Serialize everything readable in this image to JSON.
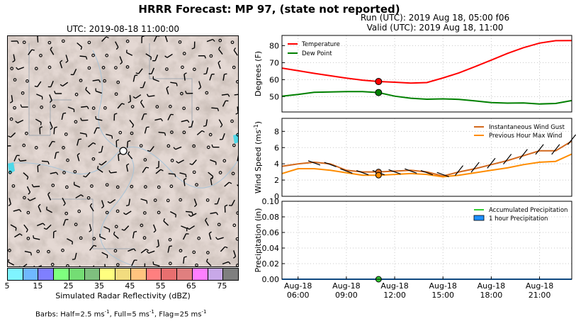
{
  "figure": {
    "title": "HRRR Forecast: MP 97, (state not reported)",
    "run_line": "Run (UTC): 2019 Aug 18, 05:00 f06",
    "valid_line": "Valid (UTC): 2019 Aug 18, 11:00"
  },
  "map": {
    "title": "UTC: 2019-08-18 11:00:00",
    "colorbar": {
      "label": "Simulated Radar Reflectivity (dBZ)",
      "ticks": [
        "5",
        "15",
        "25",
        "35",
        "45",
        "55",
        "65",
        "75"
      ],
      "colors": [
        "#7ff4ff",
        "#6fb8ff",
        "#7f7fff",
        "#7fff7f",
        "#74dd74",
        "#7fc07f",
        "#ffff7f",
        "#f2dc7f",
        "#ffc47f",
        "#ff7f7f",
        "#e86f6f",
        "#e07f7f",
        "#ff7fff",
        "#c8a8e8",
        "#7f7f7f"
      ]
    },
    "barbs_note": "Barbs: Half=2.5 ms",
    "barbs_note_unit": "-1",
    "barbs_note_rest": ", Full=5 ms",
    "barbs_note_rest2": ", Flag=25 ms"
  },
  "chart_data": [
    {
      "type": "line",
      "panel": "temperature",
      "ylabel": "Degrees (F)",
      "ylim": [
        41,
        86
      ],
      "yticks": [
        "50",
        "60",
        "70",
        "80"
      ],
      "legend": [
        "Temperature",
        "Dew Point"
      ],
      "legend_position": "top-left",
      "x": [
        "05:00",
        "06:00",
        "07:00",
        "08:00",
        "09:00",
        "10:00",
        "11:00",
        "12:00",
        "13:00",
        "14:00",
        "15:00",
        "16:00",
        "17:00",
        "18:00",
        "19:00",
        "20:00",
        "21:00",
        "22:00",
        "23:00"
      ],
      "series": [
        {
          "name": "Temperature",
          "color": "#ff0000",
          "values": [
            66.8,
            65.3,
            63.7,
            62.3,
            60.9,
            59.7,
            58.9,
            58.5,
            58.0,
            58.3,
            61.0,
            64.0,
            67.7,
            71.5,
            75.4,
            78.8,
            81.5,
            82.9,
            83.0
          ]
        },
        {
          "name": "Dew Point",
          "color": "#008000",
          "values": [
            50.3,
            51.3,
            52.6,
            52.8,
            53.0,
            53.0,
            52.4,
            50.3,
            49.1,
            48.5,
            48.7,
            48.4,
            47.5,
            46.5,
            46.2,
            46.3,
            45.7,
            46.0,
            47.7
          ]
        }
      ],
      "marker_index": 6
    },
    {
      "type": "line",
      "panel": "wind",
      "ylabel": "Wind Speed (ms",
      "ylabel_unit": "-1",
      "ylim": [
        0,
        9.6
      ],
      "yticks": [
        "0",
        "2",
        "4",
        "6",
        "8"
      ],
      "legend": [
        "Instantaneous Wind Gust",
        "Previous Hour Max Wind"
      ],
      "legend_position": "top-right",
      "series": [
        {
          "name": "Instantaneous Wind Gust",
          "color": "#d2691e",
          "values": [
            3.7,
            4.0,
            4.2,
            4.0,
            3.2,
            3.0,
            3.0,
            3.1,
            3.2,
            3.0,
            2.5,
            3.0,
            3.4,
            3.9,
            4.4,
            5.0,
            5.6,
            5.6,
            6.8
          ]
        },
        {
          "name": "Previous Hour Max Wind",
          "color": "#ff8c00",
          "values": [
            2.8,
            3.4,
            3.4,
            3.2,
            2.9,
            2.6,
            2.6,
            2.7,
            2.8,
            2.7,
            2.4,
            2.6,
            2.9,
            3.2,
            3.5,
            3.9,
            4.2,
            4.3,
            5.2
          ]
        }
      ],
      "marker_index": 6
    },
    {
      "type": "line",
      "panel": "precip",
      "ylabel": "Precipitation (in)",
      "ylim": [
        0,
        0.1
      ],
      "yticks": [
        "0.00",
        "0.02",
        "0.04",
        "0.06",
        "0.08",
        "0.10"
      ],
      "legend": [
        "Accumulated Precipitation",
        "1 hour Precipitation"
      ],
      "legend_position": "top-right",
      "series": [
        {
          "name": "Accumulated Precipitation",
          "color": "#32cd32",
          "values": [
            0,
            0,
            0,
            0,
            0,
            0,
            0,
            0,
            0,
            0,
            0,
            0,
            0,
            0,
            0,
            0,
            0,
            0,
            0
          ]
        },
        {
          "name": "1 hour Precipitation",
          "color": "#1e90ff",
          "values": [
            0,
            0,
            0,
            0,
            0,
            0,
            0,
            0,
            0,
            0,
            0,
            0,
            0,
            0,
            0,
            0,
            0,
            0,
            0
          ]
        }
      ],
      "marker_index": 6,
      "xtick_labels": [
        [
          "Aug-18",
          "06:00"
        ],
        [
          "Aug-18",
          "09:00"
        ],
        [
          "Aug-18",
          "12:00"
        ],
        [
          "Aug-18",
          "15:00"
        ],
        [
          "Aug-18",
          "18:00"
        ],
        [
          "Aug-18",
          "21:00"
        ]
      ],
      "xtick_index": [
        1,
        4,
        7,
        10,
        13,
        16
      ]
    }
  ]
}
